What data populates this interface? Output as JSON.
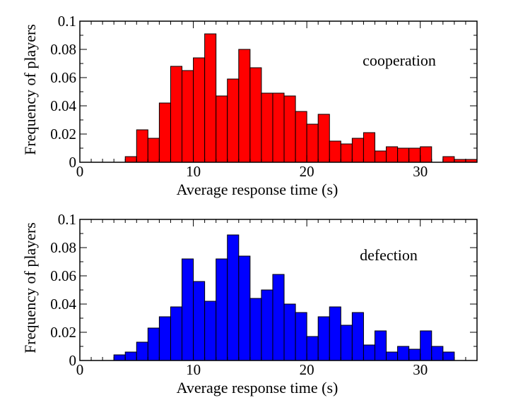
{
  "chart_data": [
    {
      "type": "bar",
      "title": "",
      "annotation": "cooperation",
      "color": "#ff0000",
      "xlabel": "Average response time (s)",
      "ylabel": "Frequency of players",
      "xlim": [
        0,
        35
      ],
      "ylim": [
        0,
        0.1
      ],
      "xticks": [
        0,
        10,
        20,
        30
      ],
      "yticks": [
        0,
        0.02,
        0.04,
        0.06,
        0.08,
        0.1
      ],
      "xtick_labels": [
        "0",
        "10",
        "20",
        "30"
      ],
      "ytick_labels": [
        "0",
        "0.02",
        "0.04",
        "0.06",
        "0.08",
        "0.1"
      ],
      "bin_width": 1,
      "x": [
        4,
        5,
        6,
        7,
        8,
        9,
        10,
        11,
        12,
        13,
        14,
        15,
        16,
        17,
        18,
        19,
        20,
        21,
        22,
        23,
        24,
        25,
        26,
        27,
        28,
        29,
        30,
        31,
        32,
        33,
        34
      ],
      "values": [
        0.004,
        0.023,
        0.017,
        0.042,
        0.068,
        0.065,
        0.074,
        0.091,
        0.047,
        0.059,
        0.08,
        0.067,
        0.049,
        0.049,
        0.047,
        0.036,
        0.027,
        0.034,
        0.015,
        0.013,
        0.017,
        0.021,
        0.008,
        0.011,
        0.01,
        0.01,
        0.011,
        0.0,
        0.004,
        0.002,
        0.002
      ]
    },
    {
      "type": "bar",
      "title": "",
      "annotation": "defection",
      "color": "#0000ff",
      "xlabel": "Average response time (s)",
      "ylabel": "Frequency of players",
      "xlim": [
        0,
        35
      ],
      "ylim": [
        0,
        0.1
      ],
      "xticks": [
        0,
        10,
        20,
        30
      ],
      "yticks": [
        0,
        0.02,
        0.04,
        0.06,
        0.08,
        0.1
      ],
      "xtick_labels": [
        "0",
        "10",
        "20",
        "30"
      ],
      "ytick_labels": [
        "0",
        "0.02",
        "0.04",
        "0.06",
        "0.08",
        "0.1"
      ],
      "bin_width": 1,
      "x": [
        3,
        4,
        5,
        6,
        7,
        8,
        9,
        10,
        11,
        12,
        13,
        14,
        15,
        16,
        17,
        18,
        19,
        20,
        21,
        22,
        23,
        24,
        25,
        26,
        27,
        28,
        29,
        30,
        31,
        32
      ],
      "values": [
        0.004,
        0.006,
        0.013,
        0.023,
        0.031,
        0.038,
        0.072,
        0.056,
        0.042,
        0.072,
        0.089,
        0.074,
        0.044,
        0.05,
        0.061,
        0.04,
        0.034,
        0.017,
        0.031,
        0.038,
        0.025,
        0.034,
        0.011,
        0.021,
        0.006,
        0.01,
        0.008,
        0.021,
        0.01,
        0.006
      ]
    }
  ]
}
